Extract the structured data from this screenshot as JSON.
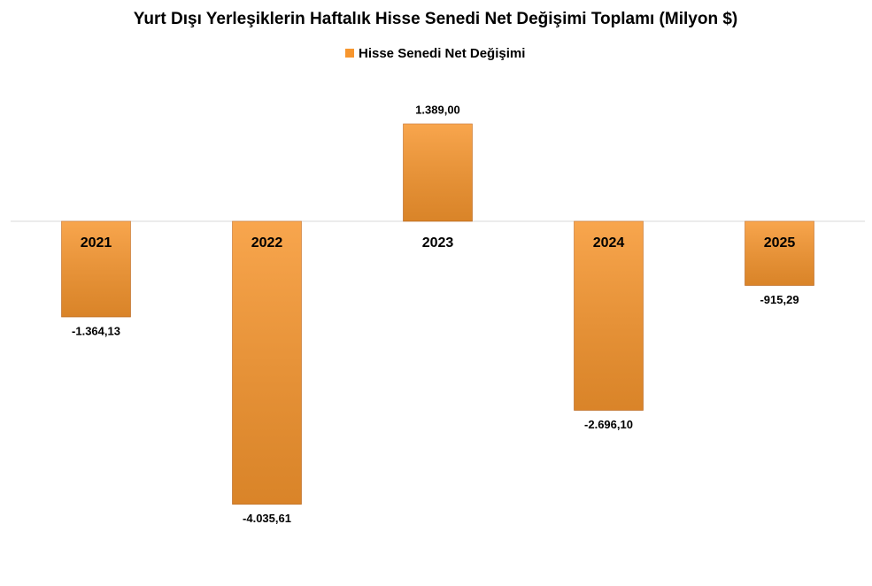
{
  "chart_data": {
    "type": "bar",
    "title": "Yurt Dışı Yerleşiklerin Haftalık Hisse Senedi Net Değişimi Toplamı (Milyon $)",
    "categories": [
      "2021",
      "2022",
      "2023",
      "2024",
      "2025"
    ],
    "series": [
      {
        "name": "Hisse Senedi Net Değişimi",
        "color": "#f7962e",
        "values": [
          -1364.13,
          -4035.61,
          1389.0,
          -2696.1,
          -915.29
        ],
        "value_labels": [
          "-1.364,13",
          "-4.035,61",
          "1.389,00",
          "-2.696,10",
          "-915,29"
        ]
      }
    ],
    "ylim": [
      -4500,
      1500
    ]
  }
}
